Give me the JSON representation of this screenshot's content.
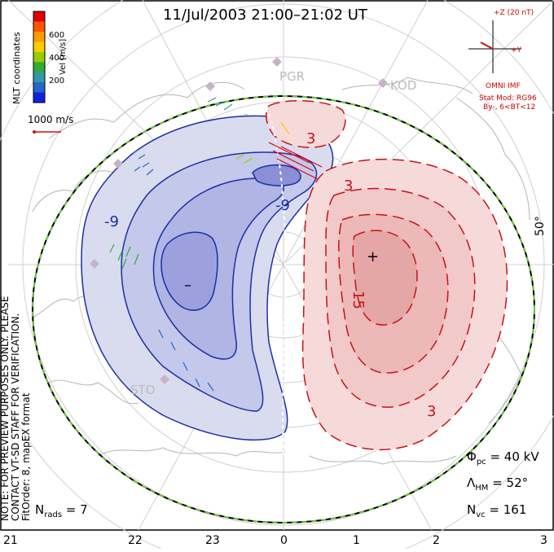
{
  "title": "11/Jul/2003 21:00–21:02 UT",
  "side_note": {
    "line1": "NOTE: FOR PREVIEW PURPOSES ONLY. PLEASE CONTACT VT-SD STAFF FOR VERIFICATION.",
    "line2": "FitOrder: 8, mapEX format"
  },
  "mlt_label": "MLT coordinates",
  "color_scale": {
    "title": "Vel [m/s]",
    "ticks": [
      "600",
      "400",
      "200"
    ],
    "colors": [
      "#e00000",
      "#ff5500",
      "#ff9900",
      "#ffcc00",
      "#99cc00",
      "#33aa33",
      "#3399aa",
      "#2266cc",
      "#1122dd"
    ]
  },
  "ref_vector": {
    "label": "1000 m/s"
  },
  "imf": {
    "z_label": "+Z (20 nT)",
    "y_label": "+Y",
    "source": "OMNI IMF",
    "model": "Stat Mod: RG96",
    "condition": "By-, 6<BT<12"
  },
  "stations": [
    "PGR",
    "KOD",
    "STO"
  ],
  "latitude_label": "50°",
  "contour_labels": {
    "neg_outer": "-9",
    "neg_inner": "-9",
    "pos_top": "3",
    "pos_right": "3",
    "pos_bottom": "3",
    "pos_center": "15",
    "min_marker": "–",
    "max_marker": "+"
  },
  "stats": {
    "phi_pc": "40 kV",
    "lambda_hm": "52°",
    "n_vc": "161",
    "n_rads": "7"
  },
  "mlt_ticks": [
    "21",
    "22",
    "23",
    "0",
    "1",
    "2",
    "3"
  ],
  "colors": {
    "negative_cell": "#1a2fa8",
    "positive_cell": "#cc1111",
    "boundary": "#66cc33"
  }
}
